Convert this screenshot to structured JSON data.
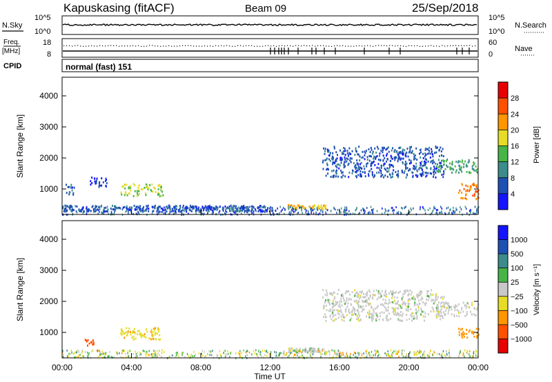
{
  "header": {
    "station": "Kapuskasing (fitACF)",
    "beam": "Beam 09",
    "date": "25/Sep/2018"
  },
  "nsky_panel": {
    "left_label": "N.Sky",
    "right_label": "N.Search",
    "ticks": [
      "10^5",
      "10^0"
    ]
  },
  "freq_panel": {
    "left_label_top": "Freq.",
    "left_label_unit": "[MHz]",
    "left_ticks": [
      "18",
      "8"
    ],
    "right_label": "Nave",
    "right_ticks": [
      "60",
      "0"
    ]
  },
  "cpid": {
    "label": "CPID",
    "mode": "normal (fast) 151"
  },
  "chart_data": [
    {
      "type": "heatmap",
      "panel": "power",
      "ylabel": "Slant Range [km]",
      "yticks": [
        "1000",
        "2000",
        "3000",
        "4000"
      ],
      "ylim": [
        180,
        4600
      ],
      "xlim": [
        0,
        24
      ],
      "colorbar": {
        "label": "Power [dB]",
        "ticks": [
          "4",
          "8",
          "12",
          "16",
          "20",
          "24",
          "28"
        ],
        "colors": [
          "#1414ff",
          "#1e50b4",
          "#3c8c8c",
          "#46b446",
          "#e6dc28",
          "#ff9600",
          "#ff5000",
          "#e60000"
        ]
      },
      "echo_regions": [
        {
          "t": [
            0.2,
            0.7
          ],
          "range": [
            800,
            1200
          ],
          "power_db": 8
        },
        {
          "t": [
            1.6,
            2.6
          ],
          "range": [
            1100,
            1400
          ],
          "power_db": 6
        },
        {
          "t": [
            3.3,
            5.8
          ],
          "range": [
            800,
            1200
          ],
          "power_db": 18
        },
        {
          "t": [
            0.0,
            12.0
          ],
          "range": [
            300,
            500
          ],
          "power_db": 8
        },
        {
          "t": [
            13.0,
            15.2
          ],
          "range": [
            380,
            520
          ],
          "power_db": 22
        },
        {
          "t": [
            15.0,
            22.0
          ],
          "range": [
            1400,
            2400
          ],
          "power_db": 8
        },
        {
          "t": [
            21.5,
            24.0
          ],
          "range": [
            1550,
            2000
          ],
          "power_db": 14
        },
        {
          "t": [
            22.8,
            24.0
          ],
          "range": [
            700,
            1200
          ],
          "power_db": 26
        }
      ]
    },
    {
      "type": "heatmap",
      "panel": "velocity",
      "ylabel": "Slant Range [km]",
      "yticks": [
        "1000",
        "2000",
        "3000",
        "4000"
      ],
      "ylim": [
        180,
        4600
      ],
      "xlim": [
        0,
        24
      ],
      "xlabel": "Time UT",
      "xticks": [
        "00:00",
        "04:00",
        "08:00",
        "12:00",
        "16:00",
        "20:00",
        "00:00"
      ],
      "colorbar": {
        "label": "Velocity [m s⁻¹]",
        "ticks": [
          "1000",
          "500",
          "100",
          "25",
          "−25",
          "−100",
          "−500",
          "−1000"
        ],
        "colors": [
          "#1414ff",
          "#1e50b4",
          "#3c8c8c",
          "#46b446",
          "#c8c8c8",
          "#e6dc28",
          "#ff9600",
          "#ff5000",
          "#e60000"
        ]
      },
      "echo_regions": [
        {
          "t": [
            15.0,
            22.0
          ],
          "range": [
            1400,
            2400
          ],
          "velocity": 0
        },
        {
          "t": [
            21.5,
            24.0
          ],
          "range": [
            1550,
            2000
          ],
          "velocity": 0
        },
        {
          "t": [
            22.8,
            24.0
          ],
          "range": [
            850,
            1150
          ],
          "velocity": -300
        },
        {
          "t": [
            1.3,
            1.8
          ],
          "range": [
            600,
            800
          ],
          "velocity": -600
        },
        {
          "t": [
            3.3,
            5.8
          ],
          "range": [
            800,
            1200
          ],
          "velocity": -80
        },
        {
          "t": [
            13.0,
            15.2
          ],
          "range": [
            380,
            520
          ],
          "velocity": 0
        }
      ]
    }
  ]
}
